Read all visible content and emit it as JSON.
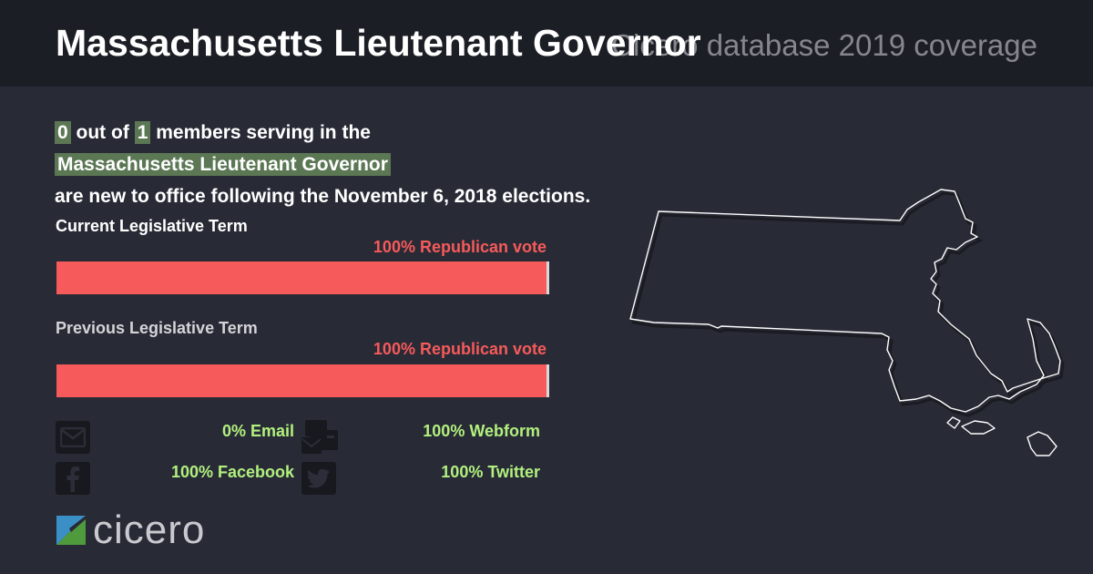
{
  "header": {
    "title": "Massachusetts Lieutenant Governor",
    "subtitle": "Cicero database 2019 coverage"
  },
  "summary": {
    "new_count": "0",
    "out_of_text": "out of",
    "total": "1",
    "line1_suffix": "members serving in the",
    "body_name": "Massachusetts Lieutenant Governor",
    "line3": "are new to office following the November 6, 2018 elections."
  },
  "terms": {
    "current": {
      "label": "Current Legislative Term",
      "vote_label": "100% Republican vote",
      "republican_share": 1.0
    },
    "previous": {
      "label": "Previous Legislative Term",
      "vote_label": "100% Republican vote",
      "republican_share": 1.0
    }
  },
  "contact": {
    "email": "0% Email",
    "webform": "100% Webform",
    "facebook": "100% Facebook",
    "twitter": "100% Twitter"
  },
  "icons": {
    "email": "envelope-icon",
    "webform": "webform-icon",
    "facebook": "facebook-icon",
    "twitter": "twitter-icon",
    "map": "massachusetts-map"
  },
  "logo": {
    "text": "cicero"
  },
  "colors": {
    "background": "#282b36",
    "header_background": "#1c1e25",
    "republican": "#f65a5a",
    "highlight": "#5b7754",
    "contact_stat": "#b2f07e",
    "previous_label": "#d4d4d8"
  }
}
